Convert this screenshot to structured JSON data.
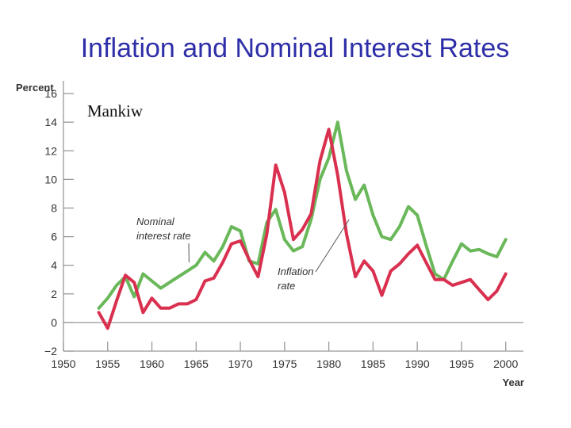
{
  "slide": {
    "title": "Inflation and Nominal Interest Rates",
    "credit": "Mankiw"
  },
  "colors": {
    "title": "#2e2ea8",
    "nominal": "#6ab85a",
    "inflation": "#d9304f",
    "axis": "#999999"
  },
  "chart_data": {
    "type": "line",
    "title": "Inflation and Nominal Interest Rates",
    "xlabel": "Year",
    "ylabel": "Percent",
    "xlim": [
      1950,
      2002
    ],
    "ylim": [
      -2,
      17
    ],
    "x_ticks": [
      1950,
      1955,
      1960,
      1965,
      1970,
      1975,
      1980,
      1985,
      1990,
      1995,
      2000
    ],
    "y_ticks": [
      -2,
      0,
      2,
      4,
      6,
      8,
      10,
      12,
      14,
      16
    ],
    "y_tick_labels": [
      "−2",
      "0",
      "2",
      "4",
      "6",
      "8",
      "10",
      "12",
      "14",
      "16"
    ],
    "grid": false,
    "series": [
      {
        "name": "Nominal interest rate",
        "label_lines": [
          "Nominal",
          "interest rate"
        ],
        "x": [
          1954,
          1955,
          1956,
          1957,
          1958,
          1959,
          1960,
          1961,
          1962,
          1963,
          1964,
          1965,
          1966,
          1967,
          1968,
          1969,
          1970,
          1971,
          1972,
          1973,
          1974,
          1975,
          1976,
          1977,
          1978,
          1979,
          1980,
          1981,
          1982,
          1983,
          1984,
          1985,
          1986,
          1987,
          1988,
          1989,
          1990,
          1991,
          1992,
          1993,
          1994,
          1995,
          1996,
          1997,
          1998,
          1999,
          2000
        ],
        "values": [
          1.0,
          1.7,
          2.6,
          3.2,
          1.8,
          3.4,
          2.9,
          2.4,
          2.8,
          3.2,
          3.6,
          4.0,
          4.9,
          4.3,
          5.3,
          6.7,
          6.4,
          4.3,
          4.1,
          7.0,
          7.9,
          5.8,
          5.0,
          5.3,
          7.2,
          10.0,
          11.5,
          14.0,
          10.6,
          8.6,
          9.6,
          7.5,
          6.0,
          5.8,
          6.7,
          8.1,
          7.5,
          5.4,
          3.4,
          3.0,
          4.3,
          5.5,
          5.0,
          5.1,
          4.8,
          4.6,
          5.8
        ]
      },
      {
        "name": "Inflation rate",
        "label_lines": [
          "Inflation",
          "rate"
        ],
        "x": [
          1954,
          1955,
          1956,
          1957,
          1958,
          1959,
          1960,
          1961,
          1962,
          1963,
          1964,
          1965,
          1966,
          1967,
          1968,
          1969,
          1970,
          1971,
          1972,
          1973,
          1974,
          1975,
          1976,
          1977,
          1978,
          1979,
          1980,
          1981,
          1982,
          1983,
          1984,
          1985,
          1986,
          1987,
          1988,
          1989,
          1990,
          1991,
          1992,
          1993,
          1994,
          1995,
          1996,
          1997,
          1998,
          1999,
          2000
        ],
        "values": [
          0.7,
          -0.4,
          1.5,
          3.3,
          2.8,
          0.7,
          1.7,
          1.0,
          1.0,
          1.3,
          1.3,
          1.6,
          2.9,
          3.1,
          4.2,
          5.5,
          5.7,
          4.4,
          3.2,
          6.2,
          11.0,
          9.1,
          5.8,
          6.5,
          7.6,
          11.3,
          13.5,
          10.3,
          6.2,
          3.2,
          4.3,
          3.6,
          1.9,
          3.6,
          4.1,
          4.8,
          5.4,
          4.2,
          3.0,
          3.0,
          2.6,
          2.8,
          3.0,
          2.3,
          1.6,
          2.2,
          3.4
        ]
      }
    ],
    "annotations": [
      {
        "series": "Nominal interest rate",
        "pointer_year": 1969
      },
      {
        "series": "Inflation rate",
        "pointer_year": 1983
      }
    ]
  }
}
